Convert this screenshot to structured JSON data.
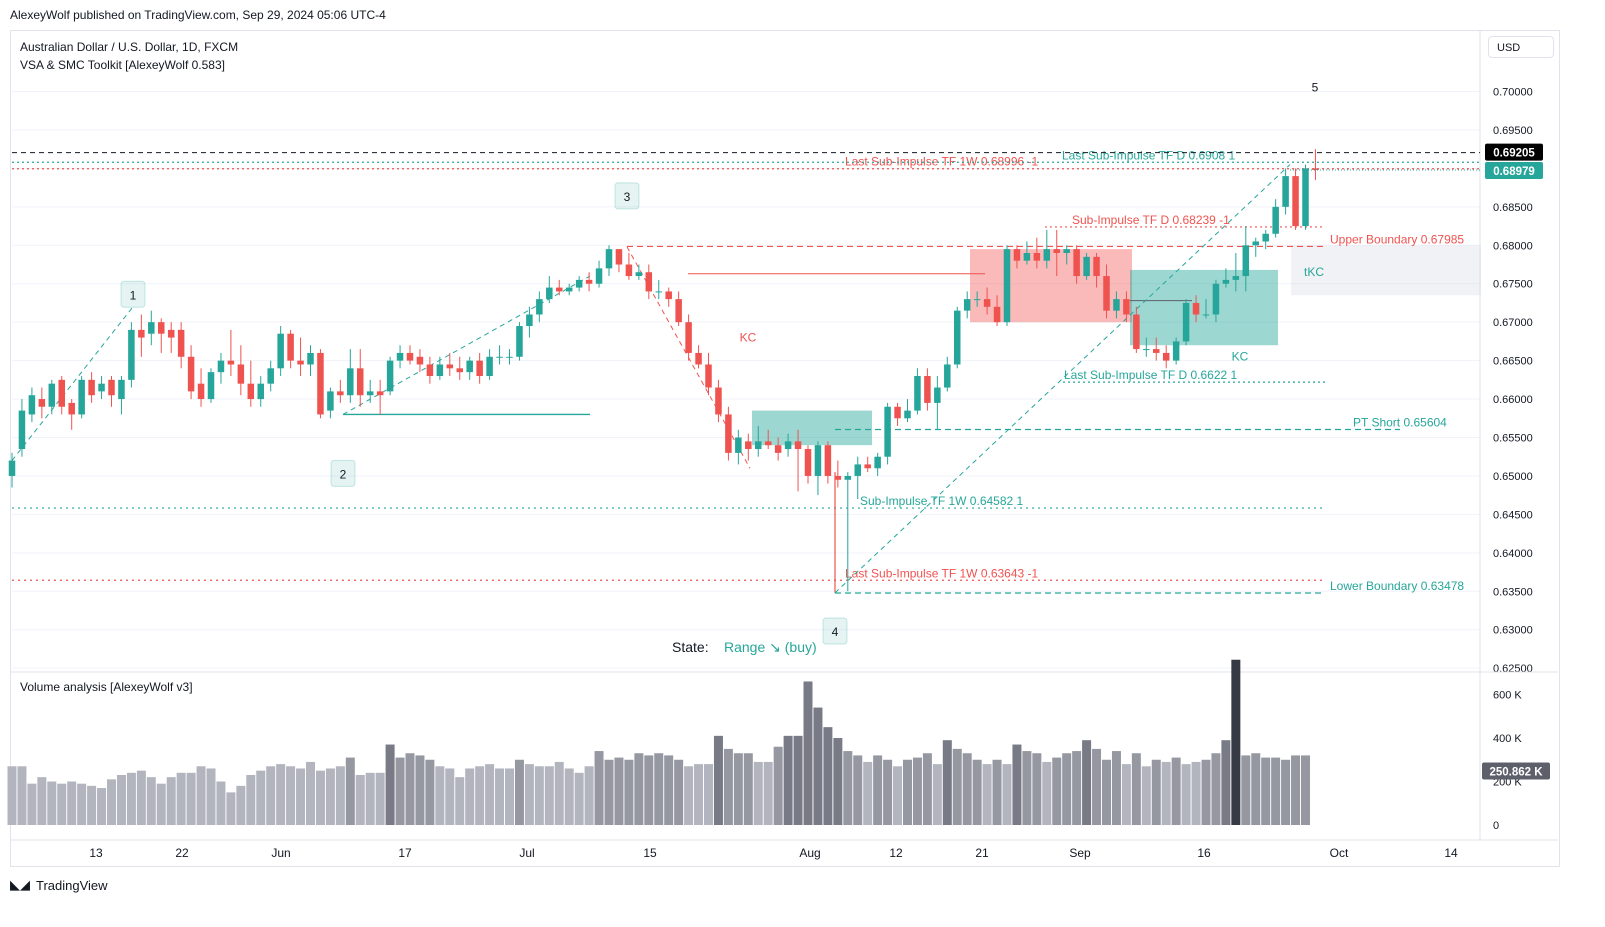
{
  "header": {
    "published": "AlexeyWolf published on TradingView.com, Sep 29, 2024 05:06 UTC-4",
    "symbol_line": "Australian Dollar / U.S. Dollar, 1D, FXCM",
    "indicator_line": "VSA & SMC Toolkit [AlexeyWolf 0.583]",
    "currency": "USD"
  },
  "footer": {
    "brand": "TradingView"
  },
  "volume_panel": {
    "title": "Volume analysis [AlexeyWolf v3]",
    "current_label": "250.862 K"
  },
  "colors": {
    "up": "#26a69a",
    "down": "#ef5350",
    "grid": "#f0f3fa",
    "dash_red": "#ef5350",
    "dash_teal": "#26a69a"
  },
  "chart_data": [
    {
      "type": "candlestick",
      "title": "Australian Dollar / U.S. Dollar, 1D, FXCM",
      "ylim": [
        0.6245,
        0.7028
      ],
      "y_ticks": [
        "0.70000",
        "0.69500",
        "0.69000",
        "0.68500",
        "0.68000",
        "0.67500",
        "0.67000",
        "0.66500",
        "0.66000",
        "0.65500",
        "0.65000",
        "0.64500",
        "0.64000",
        "0.63500",
        "0.63000",
        "0.62500"
      ],
      "x_ticks": [
        "13",
        "22",
        "Jun",
        "17",
        "Jul",
        "15",
        "Aug",
        "12",
        "21",
        "Sep",
        "16",
        "Oct",
        "14"
      ],
      "price_labels": {
        "last_close": "0.68979",
        "high_marker": "0.69205"
      },
      "levels": [
        {
          "label": "Last Sub-Impulse TF 1W 0.68996 -1",
          "value": 0.68996
        },
        {
          "label": "Last Sub-Impulse TF D 0.6908 1",
          "value": 0.6908
        },
        {
          "label": "Sub-Impulse TF D 0.68239 -1",
          "value": 0.68239
        },
        {
          "label": "Upper Boundary 0.67985",
          "value": 0.67985
        },
        {
          "label": "Last Sub-Impulse TF D 0.6622 1",
          "value": 0.6622
        },
        {
          "label": "PT Short 0.65604",
          "value": 0.65604
        },
        {
          "label": "Sub-Impulse TF 1W 0.64582 1",
          "value": 0.64582
        },
        {
          "label": "Last Sub-Impulse TF 1W 0.63643 -1",
          "value": 0.63643
        },
        {
          "label": "Lower Boundary 0.63478",
          "value": 0.63478
        }
      ],
      "wave_labels": [
        "1",
        "2",
        "3",
        "4",
        "5"
      ],
      "annotations": {
        "kc1": "KC",
        "kc2": "KC",
        "tkc": "tKC"
      },
      "state": {
        "label": "State:",
        "value": "Range ↘ (buy)"
      },
      "candles": [
        [
          0.65,
          0.652,
          0.6485,
          0.653
        ],
        [
          0.6535,
          0.6585,
          0.6525,
          0.66
        ],
        [
          0.658,
          0.6605,
          0.657,
          0.6615
        ],
        [
          0.66,
          0.659,
          0.6575,
          0.6615
        ],
        [
          0.659,
          0.662,
          0.658,
          0.6625
        ],
        [
          0.6625,
          0.659,
          0.658,
          0.663
        ],
        [
          0.6595,
          0.658,
          0.656,
          0.66
        ],
        [
          0.658,
          0.6625,
          0.6575,
          0.663
        ],
        [
          0.6625,
          0.6605,
          0.6595,
          0.6635
        ],
        [
          0.661,
          0.662,
          0.66,
          0.663
        ],
        [
          0.6625,
          0.6605,
          0.659,
          0.663
        ],
        [
          0.66,
          0.6625,
          0.658,
          0.663
        ],
        [
          0.6625,
          0.669,
          0.6615,
          0.67
        ],
        [
          0.669,
          0.668,
          0.6655,
          0.671
        ],
        [
          0.6685,
          0.67,
          0.667,
          0.6715
        ],
        [
          0.67,
          0.6685,
          0.666,
          0.6705
        ],
        [
          0.669,
          0.668,
          0.666,
          0.67
        ],
        [
          0.669,
          0.6655,
          0.664,
          0.67
        ],
        [
          0.6655,
          0.661,
          0.66,
          0.667
        ],
        [
          0.662,
          0.66,
          0.659,
          0.664
        ],
        [
          0.66,
          0.6635,
          0.6595,
          0.664
        ],
        [
          0.6635,
          0.665,
          0.662,
          0.666
        ],
        [
          0.665,
          0.6645,
          0.663,
          0.669
        ],
        [
          0.6645,
          0.662,
          0.6605,
          0.667
        ],
        [
          0.662,
          0.66,
          0.659,
          0.665
        ],
        [
          0.66,
          0.662,
          0.659,
          0.663
        ],
        [
          0.662,
          0.664,
          0.661,
          0.665
        ],
        [
          0.664,
          0.6685,
          0.663,
          0.6695
        ],
        [
          0.6685,
          0.665,
          0.664,
          0.669
        ],
        [
          0.665,
          0.6645,
          0.663,
          0.668
        ],
        [
          0.6645,
          0.666,
          0.663,
          0.667
        ],
        [
          0.666,
          0.658,
          0.6575,
          0.6665
        ],
        [
          0.6585,
          0.661,
          0.6575,
          0.6615
        ],
        [
          0.661,
          0.6605,
          0.6595,
          0.6625
        ],
        [
          0.6605,
          0.664,
          0.6595,
          0.6665
        ],
        [
          0.664,
          0.6605,
          0.659,
          0.6665
        ],
        [
          0.6605,
          0.661,
          0.6595,
          0.6625
        ],
        [
          0.661,
          0.6605,
          0.658,
          0.6625
        ],
        [
          0.661,
          0.665,
          0.6605,
          0.6655
        ],
        [
          0.665,
          0.666,
          0.664,
          0.667
        ],
        [
          0.666,
          0.665,
          0.6645,
          0.667
        ],
        [
          0.6655,
          0.6645,
          0.6635,
          0.6665
        ],
        [
          0.6645,
          0.663,
          0.662,
          0.6655
        ],
        [
          0.663,
          0.6645,
          0.6625,
          0.6655
        ],
        [
          0.6645,
          0.664,
          0.663,
          0.666
        ],
        [
          0.664,
          0.6635,
          0.6625,
          0.6655
        ],
        [
          0.6635,
          0.665,
          0.6625,
          0.6655
        ],
        [
          0.665,
          0.663,
          0.662,
          0.666
        ],
        [
          0.663,
          0.6655,
          0.6625,
          0.6665
        ],
        [
          0.6655,
          0.6655,
          0.6645,
          0.667
        ],
        [
          0.6655,
          0.6655,
          0.6645,
          0.6665
        ],
        [
          0.6655,
          0.6695,
          0.665,
          0.67
        ],
        [
          0.6695,
          0.671,
          0.668,
          0.672
        ],
        [
          0.671,
          0.673,
          0.67,
          0.674
        ],
        [
          0.673,
          0.6745,
          0.6725,
          0.676
        ],
        [
          0.6745,
          0.674,
          0.6735,
          0.6755
        ],
        [
          0.674,
          0.6745,
          0.6735,
          0.675
        ],
        [
          0.6745,
          0.6755,
          0.674,
          0.676
        ],
        [
          0.6755,
          0.675,
          0.674,
          0.6765
        ],
        [
          0.675,
          0.677,
          0.6745,
          0.678
        ],
        [
          0.677,
          0.6795,
          0.676,
          0.68
        ],
        [
          0.6795,
          0.6775,
          0.6765,
          0.6795
        ],
        [
          0.6775,
          0.676,
          0.6755,
          0.679
        ],
        [
          0.676,
          0.6765,
          0.6755,
          0.6775
        ],
        [
          0.6765,
          0.674,
          0.673,
          0.6775
        ],
        [
          0.674,
          0.674,
          0.673,
          0.6755
        ],
        [
          0.674,
          0.673,
          0.672,
          0.6745
        ],
        [
          0.673,
          0.67,
          0.6695,
          0.674
        ],
        [
          0.67,
          0.666,
          0.665,
          0.671
        ],
        [
          0.666,
          0.6645,
          0.664,
          0.667
        ],
        [
          0.6645,
          0.6615,
          0.6605,
          0.666
        ],
        [
          0.6615,
          0.658,
          0.657,
          0.6625
        ],
        [
          0.658,
          0.653,
          0.652,
          0.659
        ],
        [
          0.653,
          0.655,
          0.6515,
          0.656
        ],
        [
          0.6545,
          0.6535,
          0.652,
          0.6555
        ],
        [
          0.6535,
          0.6545,
          0.6525,
          0.6565
        ],
        [
          0.6545,
          0.654,
          0.6535,
          0.656
        ],
        [
          0.654,
          0.653,
          0.652,
          0.655
        ],
        [
          0.6535,
          0.6545,
          0.6525,
          0.6555
        ],
        [
          0.6545,
          0.6535,
          0.648,
          0.656
        ],
        [
          0.6535,
          0.65,
          0.649,
          0.654
        ],
        [
          0.65,
          0.654,
          0.6475,
          0.6545
        ],
        [
          0.654,
          0.65,
          0.649,
          0.6545
        ],
        [
          0.65,
          0.6495,
          0.6485,
          0.652
        ],
        [
          0.6495,
          0.65,
          0.635,
          0.6505
        ],
        [
          0.65,
          0.6515,
          0.647,
          0.6525
        ],
        [
          0.6515,
          0.651,
          0.6505,
          0.6525
        ],
        [
          0.651,
          0.6525,
          0.65,
          0.653
        ],
        [
          0.6525,
          0.659,
          0.6515,
          0.6595
        ],
        [
          0.659,
          0.6575,
          0.6565,
          0.6595
        ],
        [
          0.6575,
          0.6585,
          0.657,
          0.66
        ],
        [
          0.6585,
          0.663,
          0.658,
          0.664
        ],
        [
          0.663,
          0.6595,
          0.6585,
          0.664
        ],
        [
          0.6595,
          0.6615,
          0.656,
          0.663
        ],
        [
          0.6615,
          0.6645,
          0.661,
          0.6655
        ],
        [
          0.6645,
          0.6715,
          0.664,
          0.672
        ],
        [
          0.6715,
          0.673,
          0.6705,
          0.674
        ],
        [
          0.673,
          0.673,
          0.672,
          0.674
        ],
        [
          0.673,
          0.672,
          0.671,
          0.6745
        ],
        [
          0.672,
          0.67,
          0.6695,
          0.6735
        ],
        [
          0.67,
          0.6795,
          0.6695,
          0.68
        ],
        [
          0.6795,
          0.678,
          0.677,
          0.68
        ],
        [
          0.678,
          0.679,
          0.6775,
          0.6805
        ],
        [
          0.679,
          0.678,
          0.677,
          0.681
        ],
        [
          0.678,
          0.6795,
          0.677,
          0.682
        ],
        [
          0.6795,
          0.679,
          0.676,
          0.682
        ],
        [
          0.679,
          0.6795,
          0.6775,
          0.68
        ],
        [
          0.6795,
          0.676,
          0.675,
          0.68
        ],
        [
          0.676,
          0.6785,
          0.6755,
          0.679
        ],
        [
          0.6785,
          0.676,
          0.6745,
          0.679
        ],
        [
          0.676,
          0.6715,
          0.6705,
          0.6775
        ],
        [
          0.6715,
          0.673,
          0.6705,
          0.674
        ],
        [
          0.673,
          0.671,
          0.67,
          0.674
        ],
        [
          0.671,
          0.6665,
          0.666,
          0.672
        ],
        [
          0.6665,
          0.6665,
          0.6655,
          0.668
        ],
        [
          0.6665,
          0.666,
          0.665,
          0.668
        ],
        [
          0.666,
          0.665,
          0.664,
          0.667
        ],
        [
          0.665,
          0.6675,
          0.6645,
          0.668
        ],
        [
          0.6675,
          0.6725,
          0.667,
          0.673
        ],
        [
          0.6725,
          0.671,
          0.67,
          0.6735
        ],
        [
          0.671,
          0.671,
          0.6705,
          0.673
        ],
        [
          0.671,
          0.675,
          0.67,
          0.6755
        ],
        [
          0.675,
          0.6755,
          0.6745,
          0.677
        ],
        [
          0.6755,
          0.676,
          0.674,
          0.679
        ],
        [
          0.676,
          0.68,
          0.674,
          0.6825
        ],
        [
          0.68,
          0.6805,
          0.6785,
          0.681
        ],
        [
          0.6805,
          0.6815,
          0.6795,
          0.682
        ],
        [
          0.6815,
          0.685,
          0.681,
          0.686
        ],
        [
          0.685,
          0.689,
          0.684,
          0.69
        ],
        [
          0.689,
          0.6825,
          0.682,
          0.69
        ],
        [
          0.6825,
          0.69,
          0.682,
          0.6905
        ],
        [
          0.69,
          0.6898,
          0.6885,
          0.6925
        ]
      ],
      "volume_ylim": [
        0,
        630000
      ],
      "volume_ticks": [
        "600 K",
        "400 K",
        "200 K",
        "0"
      ],
      "volume": [
        270,
        270,
        190,
        220,
        200,
        190,
        200,
        190,
        180,
        170,
        210,
        230,
        240,
        250,
        220,
        190,
        220,
        240,
        240,
        270,
        260,
        200,
        150,
        180,
        230,
        250,
        270,
        280,
        270,
        260,
        290,
        250,
        260,
        270,
        310,
        230,
        240,
        240,
        370,
        310,
        330,
        320,
        300,
        270,
        260,
        220,
        260,
        270,
        280,
        260,
        260,
        300,
        280,
        270,
        270,
        290,
        260,
        240,
        270,
        340,
        300,
        310,
        300,
        330,
        320,
        330,
        320,
        300,
        270,
        280,
        280,
        410,
        350,
        330,
        330,
        290,
        290,
        360,
        410,
        410,
        660,
        540,
        450,
        400,
        340,
        320,
        290,
        320,
        300,
        270,
        300,
        310,
        330,
        280,
        390,
        350,
        330,
        300,
        280,
        300,
        280,
        370,
        340,
        330,
        290,
        310,
        330,
        340,
        390,
        350,
        300,
        340,
        280,
        330,
        270,
        300,
        290,
        310,
        280,
        290,
        300,
        330,
        390,
        760,
        320,
        330,
        310,
        310,
        300,
        320,
        320
      ]
    }
  ]
}
